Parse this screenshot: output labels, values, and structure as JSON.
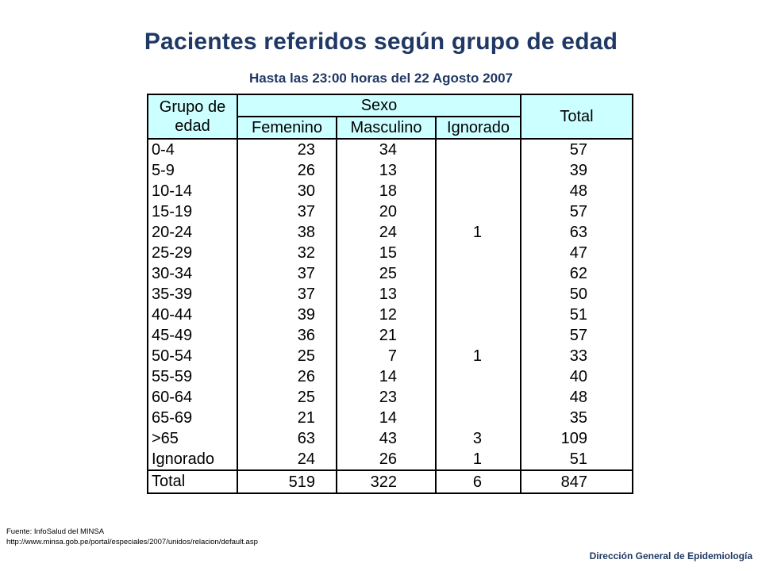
{
  "title": "Pacientes referidos según grupo de edad",
  "subtitle": "Hasta las 23:00 horas del 22 Agosto 2007",
  "table": {
    "header": {
      "group_line1": "Grupo de",
      "group_line2": "edad",
      "sexo": "Sexo",
      "total": "Total",
      "femenino": "Femenino",
      "masculino": "Masculino",
      "ignorado": "Ignorado"
    },
    "rows": [
      {
        "grupo": "0-4",
        "femenino": "23",
        "masculino": "34",
        "ignorado": "",
        "total": "57"
      },
      {
        "grupo": "5-9",
        "femenino": "26",
        "masculino": "13",
        "ignorado": "",
        "total": "39"
      },
      {
        "grupo": "10-14",
        "femenino": "30",
        "masculino": "18",
        "ignorado": "",
        "total": "48"
      },
      {
        "grupo": "15-19",
        "femenino": "37",
        "masculino": "20",
        "ignorado": "",
        "total": "57"
      },
      {
        "grupo": "20-24",
        "femenino": "38",
        "masculino": "24",
        "ignorado": "1",
        "total": "63"
      },
      {
        "grupo": "25-29",
        "femenino": "32",
        "masculino": "15",
        "ignorado": "",
        "total": "47"
      },
      {
        "grupo": "30-34",
        "femenino": "37",
        "masculino": "25",
        "ignorado": "",
        "total": "62"
      },
      {
        "grupo": "35-39",
        "femenino": "37",
        "masculino": "13",
        "ignorado": "",
        "total": "50"
      },
      {
        "grupo": "40-44",
        "femenino": "39",
        "masculino": "12",
        "ignorado": "",
        "total": "51"
      },
      {
        "grupo": "45-49",
        "femenino": "36",
        "masculino": "21",
        "ignorado": "",
        "total": "57"
      },
      {
        "grupo": "50-54",
        "femenino": "25",
        "masculino": "7",
        "ignorado": "1",
        "total": "33"
      },
      {
        "grupo": "55-59",
        "femenino": "26",
        "masculino": "14",
        "ignorado": "",
        "total": "40"
      },
      {
        "grupo": "60-64",
        "femenino": "25",
        "masculino": "23",
        "ignorado": "",
        "total": "48"
      },
      {
        "grupo": "65-69",
        "femenino": "21",
        "masculino": "14",
        "ignorado": "",
        "total": "35"
      },
      {
        "grupo": ">65",
        "femenino": "63",
        "masculino": "43",
        "ignorado": "3",
        "total": "109"
      },
      {
        "grupo": "Ignorado",
        "femenino": "24",
        "masculino": "26",
        "ignorado": "1",
        "total": "51"
      }
    ],
    "totals": {
      "label": "Total",
      "femenino": "519",
      "masculino": "322",
      "ignorado": "6",
      "total": "847"
    }
  },
  "source": {
    "line1": "Fuente: InfoSalud del MINSA",
    "line2": "http://www.minsa.gob.pe/portal/especiales/2007/unidos/relacion/default.asp"
  },
  "footer": "Dirección General de Epidemiología",
  "colors": {
    "title": "#1f3864",
    "header_bg": "#ccffff"
  }
}
